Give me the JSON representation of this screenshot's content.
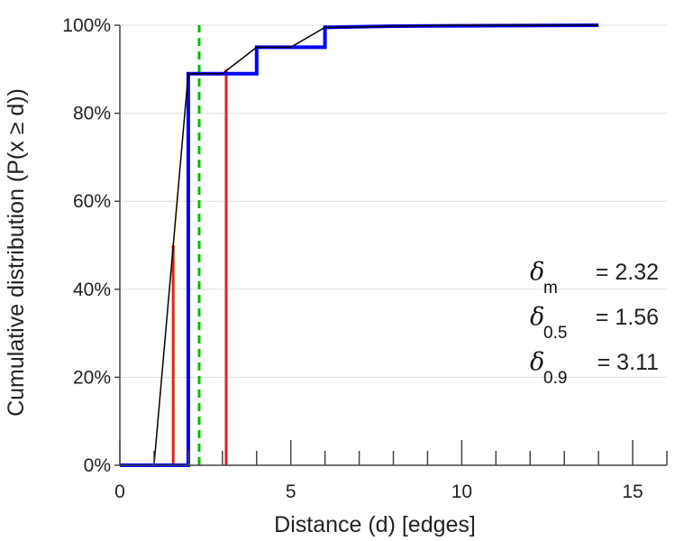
{
  "chart_data": {
    "type": "line",
    "title": "",
    "xlabel": "Distance (d) [edges]",
    "ylabel": "Cumulative distribution (P(x ≥ d))",
    "xlim": [
      0,
      16
    ],
    "ylim": [
      0,
      100
    ],
    "x_ticks": [
      0,
      5,
      10,
      15
    ],
    "x_minor_ticks": [
      1,
      2,
      3,
      4,
      6,
      7,
      8,
      9,
      11,
      12,
      13,
      14,
      16
    ],
    "y_ticks": [
      0,
      20,
      40,
      60,
      80,
      100
    ],
    "y_tick_labels": [
      "0%",
      "20%",
      "40%",
      "60%",
      "80%",
      "100%"
    ],
    "grid": "horizontal",
    "series": [
      {
        "kind": "step",
        "color": "#0000ff",
        "x": [
          0,
          2,
          2,
          4,
          4,
          6,
          6,
          8,
          14
        ],
        "y": [
          0,
          0,
          89,
          89,
          95,
          95,
          99.5,
          99.8,
          100
        ]
      },
      {
        "kind": "line",
        "color": "#000000",
        "x": [
          1,
          2,
          3,
          4,
          5,
          6,
          7,
          8,
          9,
          10,
          11,
          12,
          13,
          14
        ],
        "y": [
          0,
          89,
          89,
          95,
          95,
          99.5,
          99.6,
          99.8,
          99.9,
          100,
          100,
          100,
          100,
          100
        ]
      }
    ],
    "vlines": [
      {
        "x": 1.56,
        "y_top": 50,
        "color": "#dd2222",
        "style": "solid"
      },
      {
        "x": 3.11,
        "y_top": 90,
        "color": "#dd2222",
        "style": "solid"
      },
      {
        "x": 2.32,
        "y_top": 100,
        "color": "#00bb00",
        "style": "dashed"
      }
    ],
    "annotations": [
      {
        "symbol": "δ",
        "subscript": "m",
        "text": "= 2.32"
      },
      {
        "symbol": "δ",
        "subscript": "0.5",
        "text": "= 1.56"
      },
      {
        "symbol": "δ",
        "subscript": "0.9",
        "text": "= 3.11"
      }
    ]
  }
}
